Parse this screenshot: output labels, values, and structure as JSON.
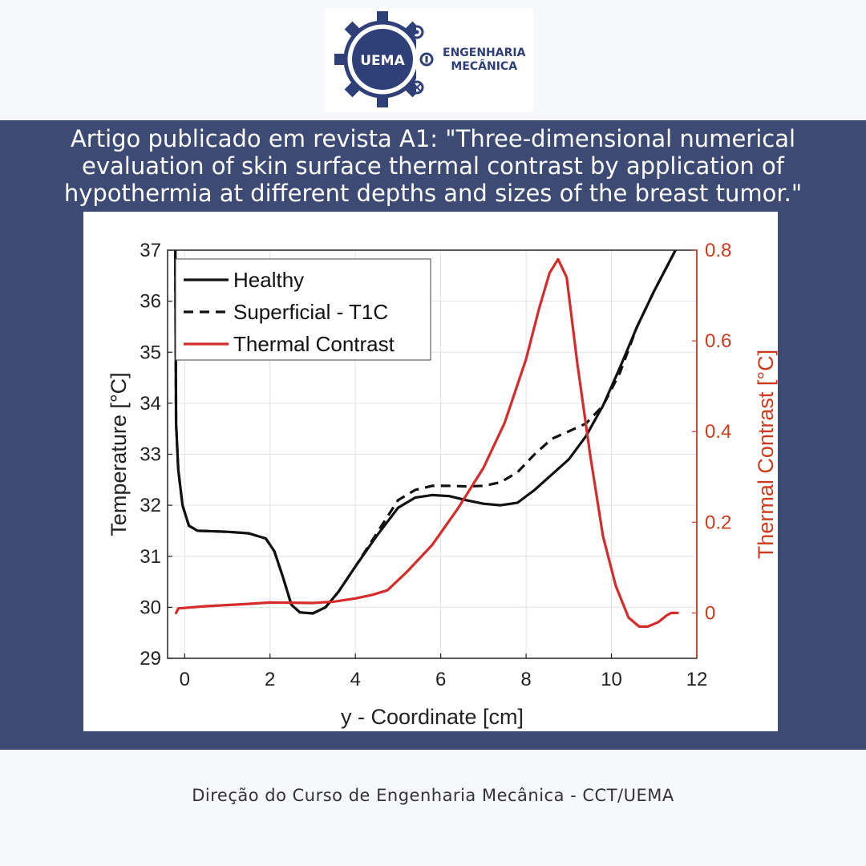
{
  "logo": {
    "badge": "UEMA",
    "line1": "ENGENHARIA",
    "line2": "MECÂNICA"
  },
  "headline": "Artigo publicado em revista A1: \"Three-dimensional numerical evaluation of skin surface thermal contrast by application of hypothermia at different depths and sizes of the breast tumor.\"",
  "footer": "Direção do Curso de Engenharia Mecânica - CCT/UEMA",
  "colors": {
    "band": "#3d4b74",
    "brand": "#2f3f77",
    "contrast": "#d62b2b",
    "right_axis": "#cc3b1e"
  },
  "chart_data": {
    "type": "line",
    "xlabel": "y - Coordinate [cm]",
    "ylabel": "Temperature [°C]",
    "y2label": "Thermal Contrast [°C]",
    "xlim": [
      -0.4,
      12
    ],
    "ylim": [
      29,
      37
    ],
    "y2lim": [
      -0.1,
      0.8
    ],
    "xticks": [
      "0",
      "2",
      "4",
      "6",
      "8",
      "10",
      "12"
    ],
    "yticks": [
      "29",
      "30",
      "31",
      "32",
      "33",
      "34",
      "35",
      "36",
      "37"
    ],
    "y2ticks": [
      "0",
      "0.2",
      "0.4",
      "0.6",
      "0.8"
    ],
    "grid": true,
    "legend_position": "top-left",
    "series": [
      {
        "name": "Healthy",
        "axis": "left",
        "style": "solid",
        "color": "#111111",
        "x": [
          -0.22,
          -0.2,
          -0.15,
          -0.05,
          0.1,
          0.3,
          1.0,
          1.5,
          1.9,
          2.1,
          2.3,
          2.5,
          2.7,
          3.0,
          3.3,
          3.6,
          4.0,
          4.5,
          5.0,
          5.4,
          5.8,
          6.2,
          6.6,
          7.0,
          7.4,
          7.8,
          8.2,
          8.6,
          9.0,
          9.4,
          9.8,
          10.2,
          10.6,
          11.0,
          11.5
        ],
        "y": [
          37,
          33.6,
          32.7,
          32.0,
          31.6,
          31.5,
          31.48,
          31.45,
          31.35,
          31.1,
          30.6,
          30.05,
          29.9,
          29.88,
          30.0,
          30.3,
          30.8,
          31.4,
          31.95,
          32.15,
          32.2,
          32.18,
          32.1,
          32.03,
          32.0,
          32.05,
          32.3,
          32.6,
          32.9,
          33.35,
          33.95,
          34.7,
          35.5,
          36.2,
          37
        ]
      },
      {
        "name": "Superficial - T1C",
        "axis": "left",
        "style": "dashed",
        "color": "#111111",
        "x": [
          -0.22,
          -0.2,
          -0.15,
          -0.05,
          0.1,
          0.3,
          1.0,
          1.5,
          1.9,
          2.1,
          2.3,
          2.5,
          2.7,
          3.0,
          3.3,
          3.6,
          4.0,
          4.5,
          5.0,
          5.4,
          5.8,
          6.2,
          6.6,
          7.0,
          7.4,
          7.8,
          8.2,
          8.6,
          9.0,
          9.4,
          9.8,
          10.2,
          10.6,
          11.0,
          11.5
        ],
        "y": [
          37,
          33.6,
          32.7,
          32.0,
          31.6,
          31.5,
          31.48,
          31.45,
          31.35,
          31.1,
          30.6,
          30.05,
          29.9,
          29.88,
          30.0,
          30.3,
          30.8,
          31.45,
          32.1,
          32.3,
          32.38,
          32.38,
          32.37,
          32.38,
          32.45,
          32.65,
          33.0,
          33.3,
          33.45,
          33.6,
          33.95,
          34.6,
          35.5,
          36.2,
          37
        ]
      },
      {
        "name": "Thermal Contrast",
        "axis": "right",
        "style": "solid",
        "color": "#d62b2b",
        "x": [
          -0.2,
          -0.15,
          0.5,
          1.5,
          2.0,
          3.0,
          3.5,
          4.0,
          4.4,
          4.75,
          5.2,
          5.8,
          6.4,
          7.0,
          7.5,
          8.0,
          8.3,
          8.55,
          8.75,
          8.95,
          9.2,
          9.5,
          9.8,
          10.1,
          10.4,
          10.65,
          10.85,
          11.1,
          11.3,
          11.4,
          11.55
        ],
        "y": [
          0.0,
          0.01,
          0.015,
          0.02,
          0.023,
          0.022,
          0.025,
          0.032,
          0.04,
          0.05,
          0.09,
          0.15,
          0.23,
          0.32,
          0.42,
          0.56,
          0.67,
          0.75,
          0.78,
          0.74,
          0.55,
          0.35,
          0.17,
          0.06,
          -0.01,
          -0.03,
          -0.03,
          -0.02,
          -0.005,
          0.0,
          0.0
        ]
      }
    ]
  }
}
